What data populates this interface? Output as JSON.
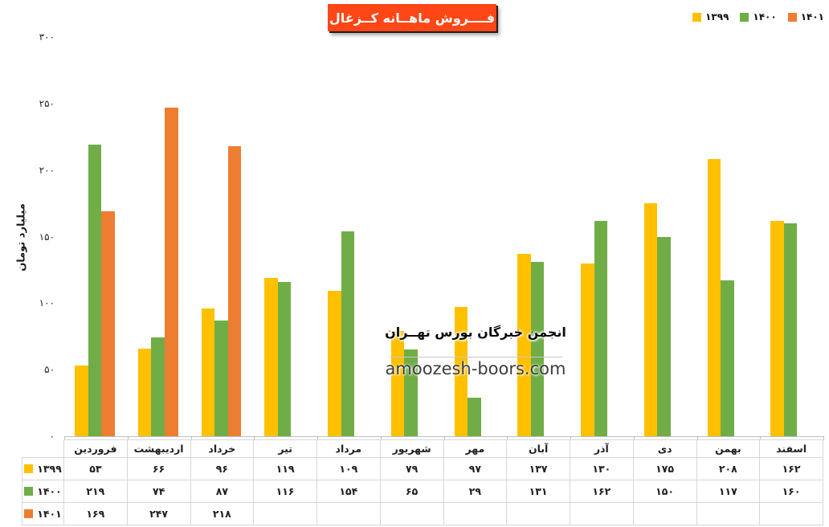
{
  "title": "فــــروش ماهــانه کــزغال",
  "title_bg": "#FE4616",
  "watermark": {
    "line1": "انجمن خبرگان بورس تهــران",
    "line2": "amoozesh-boors.com"
  },
  "chart_data": {
    "type": "bar",
    "title": "فــــروش ماهــانه کــزغال",
    "xlabel": "",
    "ylabel": "میلیارد تومان",
    "ylim": [
      0,
      300
    ],
    "yticks": [
      0,
      50,
      100,
      150,
      200,
      250,
      300
    ],
    "grid": false,
    "legend_position": "top-right",
    "data_table_shown": true,
    "categories": [
      "فروردین",
      "اردیبهشت",
      "خرداد",
      "تیر",
      "مرداد",
      "شهریور",
      "مهر",
      "آبان",
      "آذر",
      "دی",
      "بهمن",
      "اسفند"
    ],
    "series": [
      {
        "name": "۱۳۹۹",
        "color": "#FFC000",
        "values": [
          53,
          66,
          96,
          119,
          109,
          79,
          97,
          137,
          130,
          175,
          208,
          162
        ]
      },
      {
        "name": "۱۴۰۰",
        "color": "#70AD47",
        "values": [
          219,
          74,
          87,
          116,
          154,
          65,
          29,
          131,
          162,
          150,
          117,
          160
        ]
      },
      {
        "name": "۱۴۰۱",
        "color": "#ED7D31",
        "values": [
          169,
          247,
          218,
          null,
          null,
          null,
          null,
          null,
          null,
          null,
          null,
          null
        ]
      }
    ]
  }
}
